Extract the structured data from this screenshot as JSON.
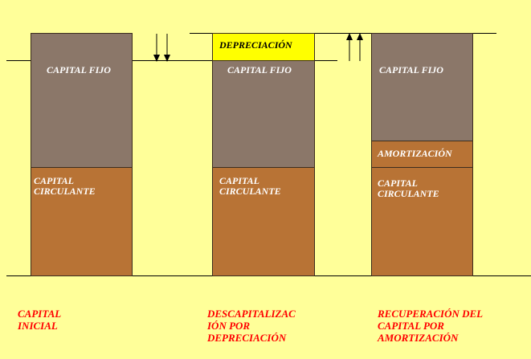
{
  "columns": [
    {
      "fixed_label": "CAPITAL FIJO",
      "current_label": "CAPITAL\nCIRCULANTE",
      "caption": "CAPITAL\nINICIAL"
    },
    {
      "depreciation_label": "DEPRECIACIÓN",
      "fixed_label": "CAPITAL FIJO",
      "current_label": "CAPITAL\nCIRCULANTE",
      "caption": "DESCAPITALIZAC\nIÓN POR\nDEPRECIACIÓN"
    },
    {
      "fixed_label": "CAPITAL FIJO",
      "amortization_label": "AMORTIZACIÓN",
      "current_label": "CAPITAL\nCIRCULANTE",
      "caption": "RECUPERACIÓN DEL\nCAPITAL POR\nAMORTIZACIÓN"
    }
  ],
  "colors": {
    "background": "#ffff99",
    "fixed_capital": "#8b7769",
    "current_capital": "#b87335",
    "depreciation": "#ffff00",
    "caption": "#ff0000"
  },
  "icons": [
    "down-arrows-icon",
    "up-arrows-icon"
  ]
}
